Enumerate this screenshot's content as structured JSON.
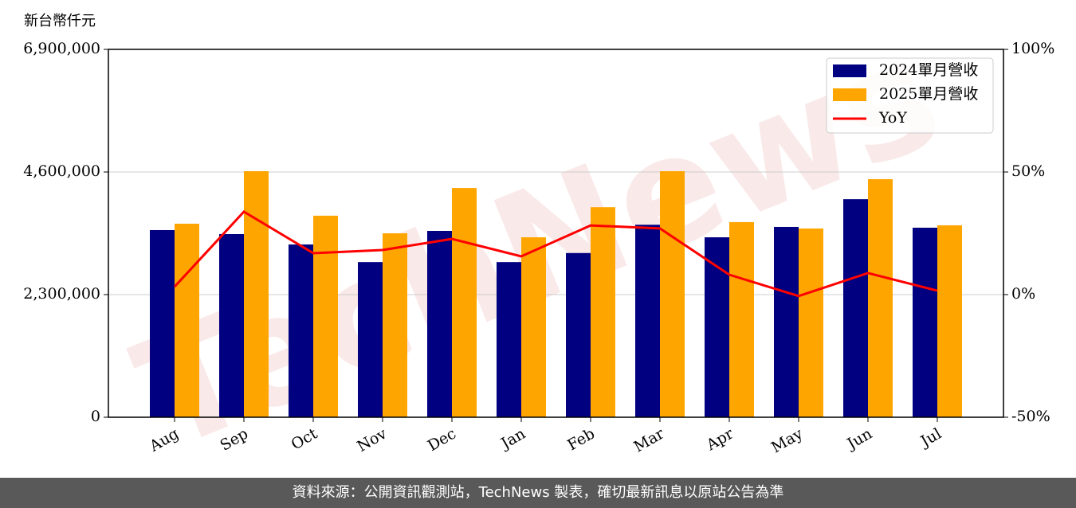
{
  "chart_data": {
    "type": "bar_line",
    "y_label": "新台幣仟元",
    "watermark": "TechNews",
    "categories": [
      "Aug",
      "Sep",
      "Oct",
      "Nov",
      "Dec",
      "Jan",
      "Feb",
      "Mar",
      "Apr",
      "May",
      "Jun",
      "Jul"
    ],
    "series": [
      {
        "name": "2024單月營收",
        "color": "#000080",
        "type": "bar",
        "values": [
          3510000,
          3435000,
          3240000,
          2910000,
          3495000,
          2910000,
          3080000,
          3610000,
          3375000,
          3570000,
          4090000,
          3555000
        ]
      },
      {
        "name": "2025單月營收",
        "color": "#ffa500",
        "type": "bar",
        "values": [
          3630000,
          4615000,
          3780000,
          3450000,
          4300000,
          3375000,
          3940000,
          4615000,
          3660000,
          3540000,
          4465000,
          3600000
        ]
      },
      {
        "name": "YoY",
        "color": "#ff0000",
        "type": "line",
        "axis": "y2",
        "values": [
          3.2,
          33.8,
          16.9,
          18.2,
          22.7,
          15.6,
          28.2,
          27.0,
          8.1,
          -0.6,
          8.8,
          1.6
        ]
      }
    ],
    "ylim": [
      0,
      6900000
    ],
    "yticks": [
      0,
      {
        "value": 2300000,
        "label": "2,300,000"
      },
      {
        "value": 4600000,
        "label": "4,600,000"
      },
      {
        "value": 6900000,
        "label": "6,900,000"
      }
    ],
    "y2lim": [
      -50,
      100
    ],
    "y2ticks": [
      {
        "value": -50,
        "label": "-50%"
      },
      {
        "value": 0,
        "label": "0%"
      },
      {
        "value": 50,
        "label": "50%"
      },
      {
        "value": 100,
        "label": "100%"
      }
    ],
    "grid": true,
    "legend": "upper-right"
  },
  "footer": "資料來源：公開資訊觀測站，TechNews 製表，確切最新訊息以原站公告為準"
}
